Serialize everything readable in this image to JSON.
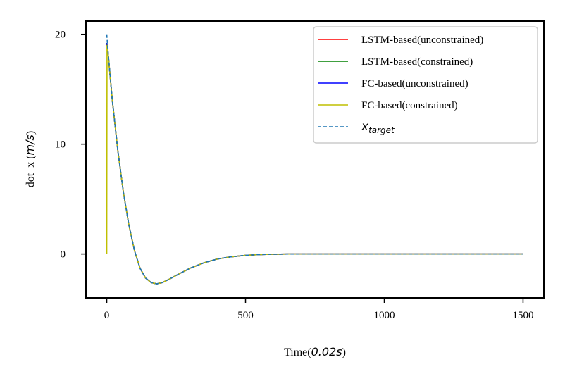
{
  "chart_data": {
    "type": "line",
    "xlabel": "Time",
    "xlabel_unit": "0.02s",
    "ylabel": "dot_x",
    "ylabel_unit": "m/s",
    "xlim": [
      -75,
      1575
    ],
    "ylim": [
      -4,
      21.2
    ],
    "x_ticks": [
      0,
      500,
      1000,
      1500
    ],
    "y_ticks": [
      0,
      10,
      20
    ],
    "legend_position": "upper-right",
    "grid": false,
    "series": [
      {
        "name": "LSTM-based(unconstrained)",
        "color": "#ff0000",
        "style": "solid",
        "x": [
          0,
          4,
          20,
          40,
          60,
          80,
          100,
          120,
          140,
          160,
          180,
          200,
          225,
          250,
          300,
          350,
          400,
          450,
          500,
          550,
          600,
          650,
          700,
          800,
          900,
          1000,
          1200,
          1500
        ],
        "y": [
          19.2,
          18.5,
          14.0,
          9.4,
          5.6,
          2.6,
          0.3,
          -1.3,
          -2.2,
          -2.6,
          -2.72,
          -2.6,
          -2.3,
          -1.95,
          -1.3,
          -0.8,
          -0.45,
          -0.25,
          -0.12,
          -0.05,
          -0.02,
          -0.005,
          0,
          0,
          0,
          0,
          0,
          0
        ]
      },
      {
        "name": "LSTM-based(constrained)",
        "color": "#008000",
        "style": "solid",
        "x": [
          0,
          4,
          20,
          40,
          60,
          80,
          100,
          120,
          140,
          160,
          180,
          200,
          225,
          250,
          300,
          350,
          400,
          450,
          500,
          550,
          600,
          650,
          700,
          800,
          900,
          1000,
          1200,
          1500
        ],
        "y": [
          19.2,
          18.5,
          14.0,
          9.4,
          5.6,
          2.6,
          0.3,
          -1.3,
          -2.2,
          -2.6,
          -2.72,
          -2.6,
          -2.3,
          -1.95,
          -1.3,
          -0.8,
          -0.45,
          -0.25,
          -0.12,
          -0.05,
          -0.02,
          -0.005,
          0,
          0,
          0,
          0,
          0,
          0
        ]
      },
      {
        "name": "FC-based(unconstrained)",
        "color": "#0000ff",
        "style": "solid",
        "x": [
          0,
          4,
          20,
          40,
          60,
          80,
          100,
          120,
          140,
          160,
          180,
          200,
          225,
          250,
          300,
          350,
          400,
          450,
          500,
          550,
          600,
          650,
          700,
          800,
          900,
          1000,
          1200,
          1500
        ],
        "y": [
          19.2,
          18.5,
          14.0,
          9.4,
          5.6,
          2.6,
          0.3,
          -1.3,
          -2.2,
          -2.6,
          -2.72,
          -2.6,
          -2.3,
          -1.95,
          -1.3,
          -0.8,
          -0.45,
          -0.25,
          -0.12,
          -0.05,
          -0.02,
          -0.005,
          0,
          0,
          0,
          0,
          0,
          0
        ]
      },
      {
        "name": "FC-based(constrained)",
        "color": "#bfbf00",
        "style": "solid",
        "x": [
          0,
          1,
          4,
          20,
          40,
          60,
          80,
          100,
          120,
          140,
          160,
          180,
          200,
          225,
          250,
          300,
          350,
          400,
          450,
          500,
          550,
          600,
          650,
          700,
          800,
          900,
          1000,
          1200,
          1500
        ],
        "y": [
          0,
          19.0,
          18.5,
          14.0,
          9.4,
          5.6,
          2.6,
          0.3,
          -1.3,
          -2.2,
          -2.6,
          -2.72,
          -2.6,
          -2.3,
          -1.95,
          -1.3,
          -0.8,
          -0.45,
          -0.25,
          -0.12,
          -0.05,
          -0.02,
          -0.005,
          0,
          0,
          0,
          0,
          0,
          0
        ]
      },
      {
        "name": "x_target",
        "label_base": "x",
        "label_sub": "target",
        "color": "#1f77b4",
        "style": "dashed",
        "x": [
          0,
          4,
          20,
          40,
          60,
          80,
          100,
          120,
          140,
          160,
          180,
          200,
          225,
          250,
          300,
          350,
          400,
          450,
          500,
          550,
          600,
          650,
          700,
          800,
          900,
          1000,
          1200,
          1500
        ],
        "y": [
          20.0,
          18.6,
          14.0,
          9.4,
          5.6,
          2.6,
          0.3,
          -1.3,
          -2.2,
          -2.6,
          -2.72,
          -2.6,
          -2.3,
          -1.95,
          -1.3,
          -0.8,
          -0.45,
          -0.25,
          -0.12,
          -0.05,
          -0.02,
          -0.005,
          0,
          0,
          0,
          0,
          0,
          0
        ]
      }
    ]
  }
}
